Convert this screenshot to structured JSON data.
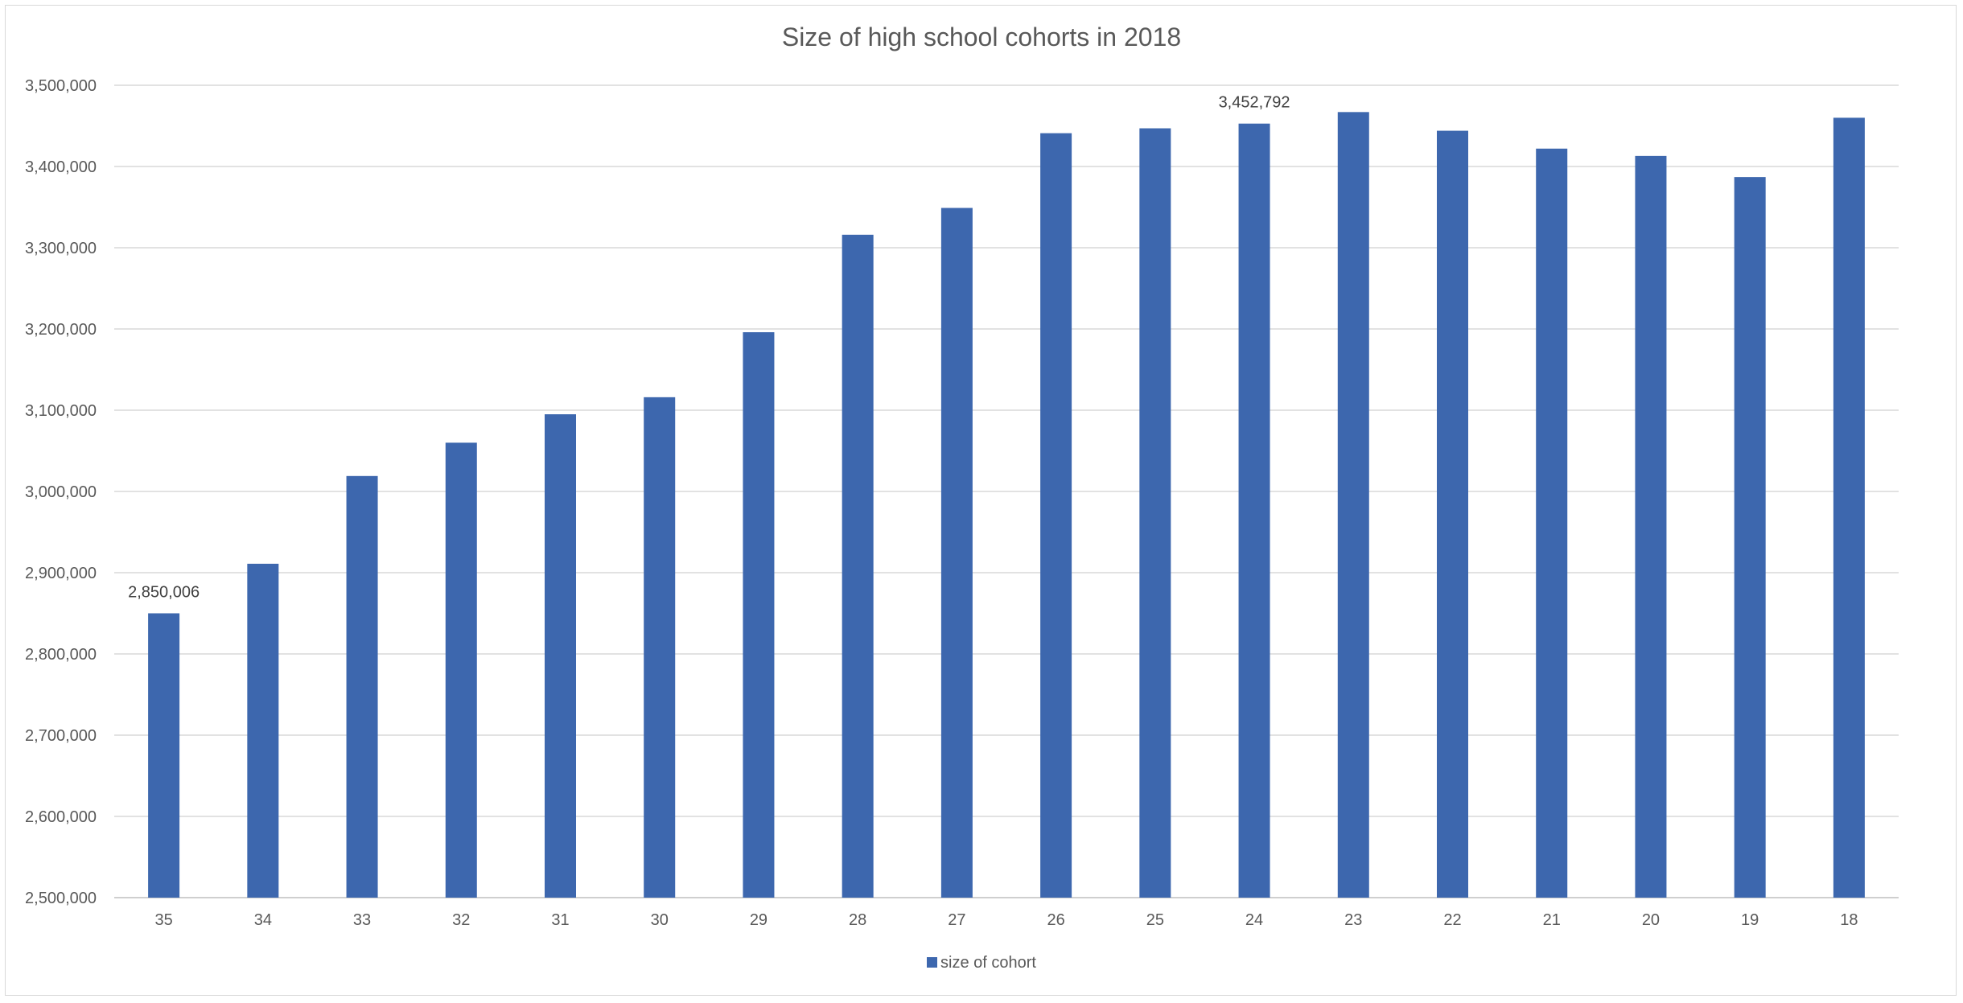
{
  "chart_data": {
    "type": "bar",
    "title": "Size of high school cohorts in 2018",
    "xlabel": "",
    "ylabel": "",
    "categories": [
      "35",
      "34",
      "33",
      "32",
      "31",
      "30",
      "29",
      "28",
      "27",
      "26",
      "25",
      "24",
      "23",
      "22",
      "21",
      "20",
      "19",
      "18"
    ],
    "series": [
      {
        "name": "size of cohort",
        "color": "#3d67ae",
        "values": [
          2850006,
          2911000,
          3019000,
          3060000,
          3095000,
          3116000,
          3196000,
          3316000,
          3349000,
          3441000,
          3447000,
          3452792,
          3467000,
          3444000,
          3422000,
          3413000,
          3387000,
          3460000
        ]
      }
    ],
    "data_labels": [
      {
        "index": 0,
        "text": "2,850,006"
      },
      {
        "index": 11,
        "text": "3,452,792"
      }
    ],
    "ylim": [
      2500000,
      3500000
    ],
    "y_ticks": [
      "2,500,000",
      "2,600,000",
      "2,700,000",
      "2,800,000",
      "2,900,000",
      "3,000,000",
      "3,100,000",
      "3,200,000",
      "3,300,000",
      "3,400,000",
      "3,500,000"
    ],
    "y_tick_values": [
      2500000,
      2600000,
      2700000,
      2800000,
      2900000,
      3000000,
      3100000,
      3200000,
      3300000,
      3400000,
      3500000
    ],
    "grid": true,
    "legend_position": "bottom"
  }
}
